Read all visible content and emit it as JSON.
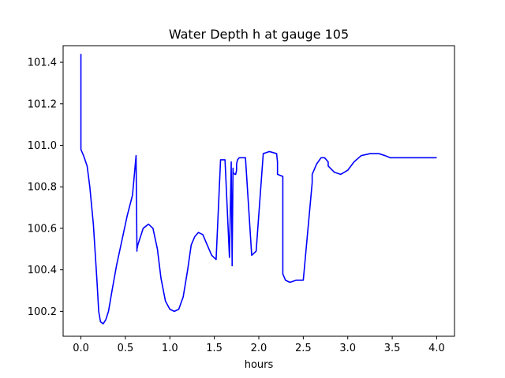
{
  "chart_data": {
    "type": "line",
    "title": "Water Depth h at gauge 105",
    "xlabel": "hours",
    "ylabel": "",
    "xlim": [
      -0.2,
      4.2
    ],
    "ylim": [
      100.08,
      101.48
    ],
    "xticks": [
      0.0,
      0.5,
      1.0,
      1.5,
      2.0,
      2.5,
      3.0,
      3.5,
      4.0
    ],
    "xtick_labels": [
      "0.0",
      "0.5",
      "1.0",
      "1.5",
      "2.0",
      "2.5",
      "3.0",
      "3.5",
      "4.0"
    ],
    "yticks": [
      100.2,
      100.4,
      100.6,
      100.8,
      101.0,
      101.2,
      101.4
    ],
    "ytick_labels": [
      "100.2",
      "100.4",
      "100.6",
      "100.8",
      "101.0",
      "101.2",
      "101.4"
    ],
    "grid": false,
    "series": [
      {
        "color": "#0000ff",
        "x": [
          0.0,
          0.0,
          0.0,
          0.03,
          0.07,
          0.1,
          0.14,
          0.18,
          0.2,
          0.22,
          0.25,
          0.28,
          0.31,
          0.35,
          0.4,
          0.46,
          0.52,
          0.58,
          0.62,
          0.62,
          0.63,
          0.63,
          0.64,
          0.7,
          0.76,
          0.81,
          0.86,
          0.9,
          0.95,
          1.0,
          1.05,
          1.1,
          1.15,
          1.2,
          1.24,
          1.28,
          1.32,
          1.37,
          1.42,
          1.47,
          1.52,
          1.57,
          1.62,
          1.67,
          1.69,
          1.69,
          1.7,
          1.7,
          1.71,
          1.71,
          1.73,
          1.74,
          1.75,
          1.75,
          1.76,
          1.78,
          1.85,
          1.92,
          1.97,
          2.05,
          2.12,
          2.2,
          2.21,
          2.21,
          2.27,
          2.27,
          2.3,
          2.35,
          2.42,
          2.5,
          2.6,
          2.6,
          2.65,
          2.7,
          2.74,
          2.78,
          2.78,
          2.85,
          2.92,
          3.0,
          3.07,
          3.15,
          3.25,
          3.35,
          3.42,
          3.48,
          3.55,
          3.65,
          3.75,
          3.85,
          3.92,
          3.97,
          4.0
        ],
        "y": [
          101.44,
          100.98,
          100.98,
          100.95,
          100.9,
          100.8,
          100.62,
          100.35,
          100.2,
          100.15,
          100.14,
          100.16,
          100.2,
          100.3,
          100.42,
          100.54,
          100.66,
          100.76,
          100.95,
          100.95,
          100.49,
          100.5,
          100.52,
          100.6,
          100.62,
          100.6,
          100.5,
          100.36,
          100.25,
          100.21,
          100.2,
          100.21,
          100.27,
          100.4,
          100.52,
          100.56,
          100.58,
          100.57,
          100.52,
          100.47,
          100.45,
          100.93,
          100.93,
          100.46,
          100.92,
          100.9,
          100.44,
          100.42,
          100.89,
          100.87,
          100.86,
          100.86,
          100.88,
          100.91,
          100.93,
          100.94,
          100.94,
          100.47,
          100.49,
          100.96,
          100.97,
          100.96,
          100.92,
          100.86,
          100.85,
          100.38,
          100.35,
          100.34,
          100.35,
          100.35,
          100.82,
          100.86,
          100.91,
          100.94,
          100.94,
          100.92,
          100.9,
          100.87,
          100.86,
          100.88,
          100.92,
          100.95,
          100.96,
          100.96,
          100.95,
          100.94,
          100.94,
          100.94,
          100.94,
          100.94,
          100.94,
          100.94,
          100.94
        ]
      }
    ]
  }
}
